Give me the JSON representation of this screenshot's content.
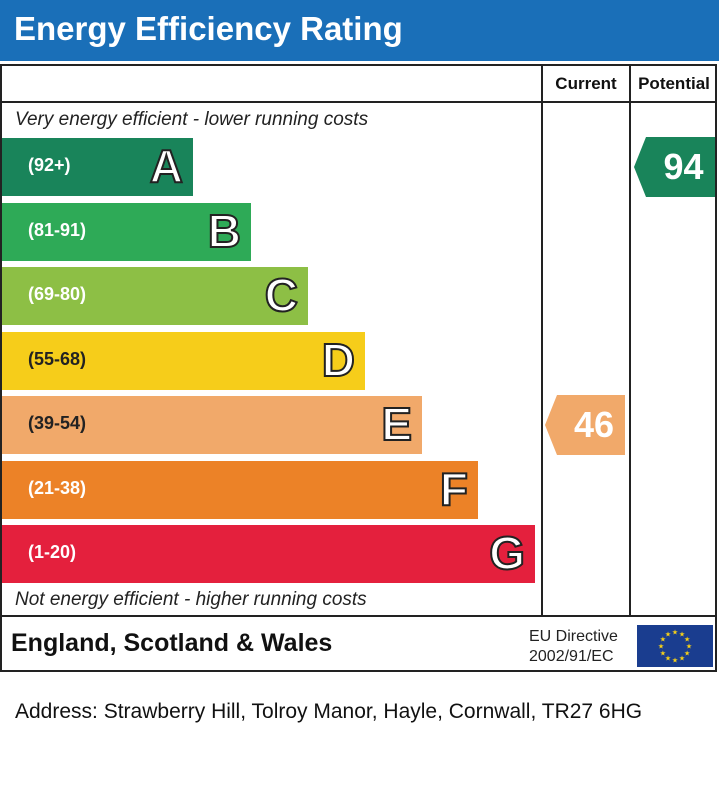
{
  "header": {
    "title": "Energy Efficiency Rating"
  },
  "table": {
    "current_label": "Current",
    "potential_label": "Potential"
  },
  "chart_data": {
    "type": "bar",
    "title": "Energy Efficiency Rating",
    "top_caption": "Very energy efficient - lower running costs",
    "bottom_caption": "Not energy efficient - higher running costs",
    "bands": [
      {
        "letter": "A",
        "range": "(92+)",
        "color": "#19845a",
        "text_dark": false
      },
      {
        "letter": "B",
        "range": "(81-91)",
        "color": "#2eaa57",
        "text_dark": false
      },
      {
        "letter": "C",
        "range": "(69-80)",
        "color": "#8dbf45",
        "text_dark": false
      },
      {
        "letter": "D",
        "range": "(55-68)",
        "color": "#f6cd1a",
        "text_dark": true
      },
      {
        "letter": "E",
        "range": "(39-54)",
        "color": "#f1a96a",
        "text_dark": true
      },
      {
        "letter": "F",
        "range": "(21-38)",
        "color": "#ec8227",
        "text_dark": false
      },
      {
        "letter": "G",
        "range": "(1-20)",
        "color": "#e4203d",
        "text_dark": false
      }
    ],
    "current": {
      "value": "46",
      "band": "E",
      "color": "#f1a96a"
    },
    "potential": {
      "value": "94",
      "band": "A",
      "color": "#19845a"
    }
  },
  "footer": {
    "country": "England, Scotland & Wales",
    "directive_line1": "EU Directive",
    "directive_line2": "2002/91/EC",
    "flag_icon": "eu-flag-icon",
    "flag_color": "#1a3d8f",
    "star_color": "#f7d117"
  },
  "address": "Address: Strawberry Hill, Tolroy Manor, Hayle, Cornwall, TR27 6HG"
}
